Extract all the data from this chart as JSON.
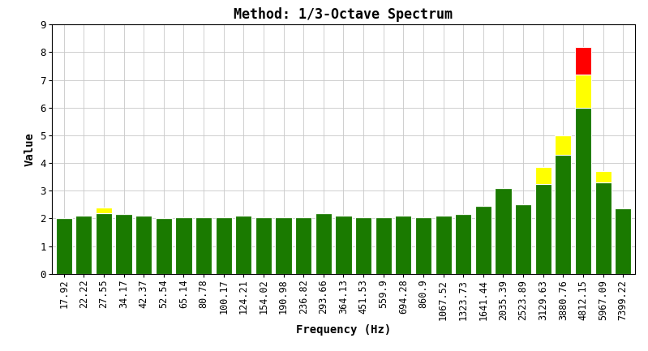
{
  "title": "Method: 1/3-Octave Spectrum",
  "xlabel": "Frequency (Hz)",
  "ylabel": "Value",
  "ylim": [
    0,
    9
  ],
  "yticks": [
    0,
    1,
    2,
    3,
    4,
    5,
    6,
    7,
    8,
    9
  ],
  "background_color": "#ffffff",
  "grid_color": "#c8c8c8",
  "bar_color_green": "#1a7a00",
  "bar_color_yellow": "#ffff00",
  "bar_color_red": "#ff0000",
  "categories": [
    "17.92",
    "22.22",
    "27.55",
    "34.17",
    "42.37",
    "52.54",
    "65.14",
    "80.78",
    "100.17",
    "124.21",
    "154.02",
    "190.98",
    "236.82",
    "293.66",
    "364.13",
    "451.53",
    "559.9",
    "694.28",
    "860.9",
    "1067.52",
    "1323.73",
    "1641.44",
    "2035.39",
    "2523.89",
    "3129.63",
    "3880.76",
    "4812.15",
    "5967.09",
    "7399.22"
  ],
  "green_values": [
    2.0,
    2.1,
    2.2,
    2.15,
    2.1,
    2.0,
    2.05,
    2.05,
    2.05,
    2.1,
    2.05,
    2.05,
    2.05,
    2.2,
    2.1,
    2.05,
    2.05,
    2.1,
    2.05,
    2.1,
    2.15,
    2.45,
    3.1,
    2.5,
    3.25,
    4.3,
    6.0,
    3.3,
    2.35
  ],
  "yellow_values": [
    0,
    0,
    0.2,
    0,
    0,
    0,
    0,
    0,
    0,
    0,
    0,
    0,
    0,
    0,
    0,
    0,
    0,
    0,
    0,
    0,
    0,
    0,
    0,
    0,
    0.6,
    0.7,
    1.2,
    0.4,
    0.05
  ],
  "red_values": [
    0,
    0,
    0,
    0,
    0,
    0,
    0,
    0,
    0,
    0,
    0,
    0,
    0,
    0,
    0,
    0,
    0,
    0,
    0,
    0,
    0,
    0,
    0,
    0,
    0,
    0,
    1.0,
    0,
    0
  ],
  "figsize": [
    7.99,
    4.33
  ],
  "dpi": 100,
  "title_fontsize": 12,
  "label_fontsize": 10,
  "tick_fontsize": 8.5,
  "bar_width": 0.82
}
